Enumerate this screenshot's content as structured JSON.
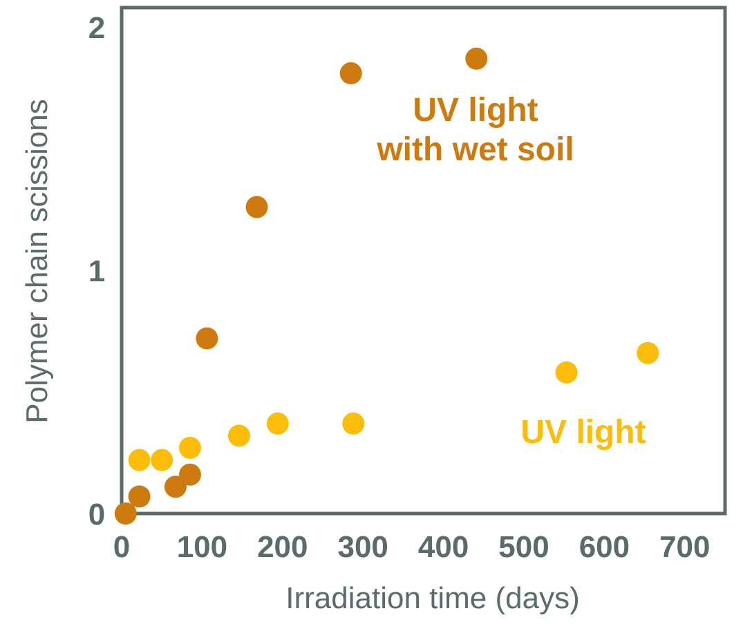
{
  "chart_data": {
    "type": "scatter",
    "xlabel": "Irradiation time (days)",
    "ylabel": "Polymer chain scissions",
    "xlim": [
      0,
      750
    ],
    "ylim": [
      0,
      2.08
    ],
    "xticks": [
      "0",
      "100",
      "200",
      "300",
      "400",
      "500",
      "600",
      "700"
    ],
    "yticks": [
      "0",
      "1",
      "2"
    ],
    "grid": false,
    "series": [
      {
        "color": "#cd7a0f",
        "points": [
          {
            "x": 5,
            "y": 0.0
          },
          {
            "x": 22,
            "y": 0.07
          },
          {
            "x": 67,
            "y": 0.11
          },
          {
            "x": 85,
            "y": 0.16
          },
          {
            "x": 106,
            "y": 0.72
          },
          {
            "x": 168,
            "y": 1.26
          },
          {
            "x": 285,
            "y": 1.81
          },
          {
            "x": 441,
            "y": 1.87
          }
        ]
      },
      {
        "color": "#fbbc0a",
        "points": [
          {
            "x": 22,
            "y": 0.22
          },
          {
            "x": 50,
            "y": 0.22
          },
          {
            "x": 85,
            "y": 0.27
          },
          {
            "x": 146,
            "y": 0.32
          },
          {
            "x": 194,
            "y": 0.37
          },
          {
            "x": 288,
            "y": 0.37
          },
          {
            "x": 553,
            "y": 0.58
          },
          {
            "x": 654,
            "y": 0.66
          }
        ]
      }
    ],
    "annotations": [
      {
        "lines": [
          "UV light",
          "with wet soil"
        ],
        "color": "#cd7a0f"
      },
      {
        "lines": [
          "UV light"
        ],
        "color": "#fbbc0a"
      }
    ],
    "colors": {
      "axis": "#5b6a6a"
    }
  }
}
